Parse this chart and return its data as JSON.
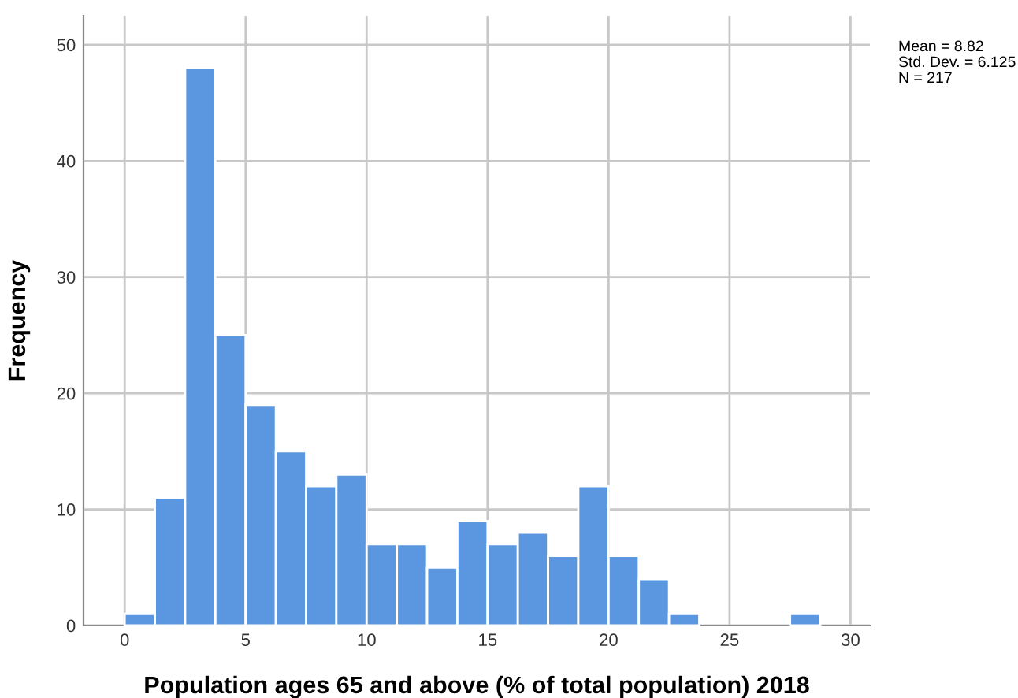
{
  "chart_data": {
    "type": "histogram",
    "xlabel": "Population ages 65 and above (% of total population) 2018",
    "ylabel": "Frequency",
    "bins": [
      0,
      1.25,
      2.5,
      3.75,
      5,
      6.25,
      7.5,
      8.75,
      10,
      11.25,
      12.5,
      13.75,
      15,
      16.25,
      17.5,
      18.75,
      20,
      21.25,
      22.5,
      23.75,
      25,
      26.25,
      27.5,
      28.75
    ],
    "values": [
      1,
      11,
      48,
      25,
      19,
      15,
      12,
      13,
      7,
      7,
      5,
      9,
      7,
      8,
      6,
      12,
      6,
      4,
      1,
      0,
      0,
      0,
      1
    ],
    "color": "#5b97e0",
    "xlim": [
      -1.7,
      30.8
    ],
    "ylim": [
      0,
      52.5
    ],
    "xticks": [
      0,
      5,
      10,
      15,
      20,
      25,
      30
    ],
    "yticks": [
      0,
      10,
      20,
      30,
      40,
      50
    ],
    "grid": true,
    "annotations": [
      "Mean = 8.82",
      "Std. Dev. = 6.125",
      "N = 217"
    ]
  }
}
